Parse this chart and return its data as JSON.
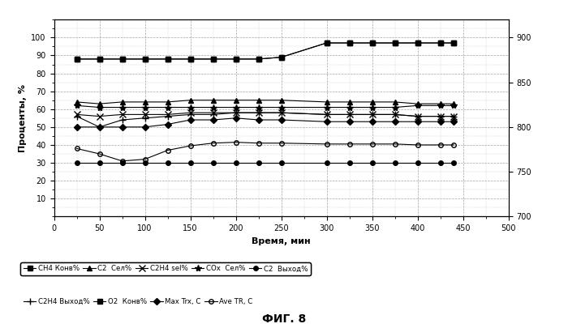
{
  "xlabel": "Время, мин",
  "ylabel": "Проценты, %",
  "fig_label": "ФИГ. 8",
  "xlim": [
    0,
    500
  ],
  "ylim_left": [
    0,
    110
  ],
  "ylim_right": [
    700,
    920
  ],
  "xticks": [
    0,
    50,
    100,
    150,
    200,
    250,
    300,
    350,
    400,
    450,
    500
  ],
  "yticks_left": [
    10,
    20,
    30,
    40,
    50,
    60,
    70,
    80,
    90,
    100
  ],
  "yticks_right": [
    700,
    750,
    800,
    850,
    900
  ],
  "series": {
    "CH4_conv": {
      "label": "CH4 Конв%",
      "marker": "s",
      "fillstyle": "full",
      "x": [
        25,
        50,
        75,
        100,
        125,
        150,
        175,
        200,
        225,
        250,
        300,
        325,
        350,
        375,
        400,
        425,
        440
      ],
      "y": [
        88,
        88,
        88,
        88,
        88,
        88,
        88,
        88,
        88,
        89,
        97,
        97,
        97,
        97,
        97,
        97,
        97
      ],
      "axis": "left"
    },
    "C2_sel": {
      "label": "C2  Сел%",
      "marker": "^",
      "fillstyle": "full",
      "x": [
        25,
        50,
        75,
        100,
        125,
        150,
        175,
        200,
        225,
        250,
        300,
        325,
        350,
        375,
        400,
        425,
        440
      ],
      "y": [
        64,
        63,
        64,
        64,
        64,
        65,
        65,
        65,
        65,
        65,
        64,
        64,
        64,
        64,
        63,
        63,
        63
      ],
      "axis": "left"
    },
    "C2H4_sel": {
      "label": "C2H4 sel%",
      "marker": "x",
      "fillstyle": "full",
      "x": [
        25,
        50,
        75,
        100,
        125,
        150,
        175,
        200,
        225,
        250,
        300,
        325,
        350,
        375,
        400,
        425,
        440
      ],
      "y": [
        57,
        56,
        57,
        57,
        57,
        58,
        58,
        58,
        58,
        58,
        57,
        57,
        57,
        57,
        56,
        56,
        56
      ],
      "axis": "left"
    },
    "COx_sel": {
      "label": "COx  Сел%",
      "marker": "*",
      "fillstyle": "full",
      "x": [
        25,
        50,
        75,
        100,
        125,
        150,
        175,
        200,
        225,
        250,
        300,
        325,
        350,
        375,
        400,
        425,
        440
      ],
      "y": [
        62,
        61,
        61,
        61,
        61,
        61,
        61,
        61,
        61,
        61,
        61,
        61,
        61,
        61,
        62,
        62,
        62
      ],
      "axis": "left"
    },
    "C2_yield": {
      "label": "C2  Выход%",
      "marker": "o",
      "fillstyle": "full",
      "x": [
        25,
        50,
        75,
        100,
        125,
        150,
        175,
        200,
        225,
        250,
        300,
        325,
        350,
        375,
        400,
        425,
        440
      ],
      "y": [
        30,
        30,
        30,
        30,
        30,
        30,
        30,
        30,
        30,
        30,
        30,
        30,
        30,
        30,
        30,
        30,
        30
      ],
      "axis": "left"
    },
    "C2H4_yield": {
      "label": "C2H4 Выход%",
      "marker": "+",
      "fillstyle": "full",
      "x": [
        25,
        50,
        75,
        100,
        125,
        150,
        175,
        200,
        225,
        250,
        300,
        325,
        350,
        375,
        400,
        425,
        440
      ],
      "y": [
        56,
        50,
        54,
        55,
        56,
        57,
        57,
        58,
        58,
        58,
        57,
        57,
        57,
        57,
        56,
        56,
        56
      ],
      "axis": "left"
    },
    "O2_conv": {
      "label": "O2  Конв%",
      "marker": "s",
      "fillstyle": "full",
      "x": [
        25,
        50,
        75,
        100,
        125,
        150,
        175,
        200,
        225,
        250,
        300,
        325,
        350,
        375,
        400,
        425,
        440
      ],
      "y": [
        88,
        88,
        88,
        88,
        88,
        88,
        88,
        88,
        88,
        89,
        97,
        97,
        97,
        97,
        97,
        97,
        97
      ],
      "axis": "left"
    },
    "Max_Trx": {
      "label": "Max Trx, C",
      "marker": "D",
      "fillstyle": "full",
      "x": [
        25,
        50,
        75,
        100,
        125,
        150,
        175,
        200,
        225,
        250,
        300,
        325,
        350,
        375,
        400,
        425,
        440
      ],
      "y": [
        800,
        800,
        800,
        800,
        803,
        808,
        808,
        810,
        808,
        808,
        806,
        806,
        806,
        806,
        806,
        806,
        806
      ],
      "axis": "right"
    },
    "Ave_TR": {
      "label": "Ave TR, C",
      "marker": "o",
      "fillstyle": "none",
      "x": [
        25,
        50,
        75,
        100,
        125,
        150,
        175,
        200,
        225,
        250,
        300,
        325,
        350,
        375,
        400,
        425,
        440
      ],
      "y": [
        776,
        770,
        762,
        764,
        774,
        779,
        782,
        783,
        782,
        782,
        781,
        781,
        781,
        781,
        780,
        780,
        780
      ],
      "axis": "right"
    }
  },
  "legend_row1": [
    {
      "label": "CH4 Конв%",
      "marker": "s",
      "fillstyle": "full"
    },
    {
      "label": "C2  Сел%",
      "marker": "^",
      "fillstyle": "full"
    },
    {
      "label": "C2H4 sel%",
      "marker": "x",
      "fillstyle": "full"
    },
    {
      "label": "COx  Сел%",
      "marker": "*",
      "fillstyle": "full"
    },
    {
      "label": "C2  Выход%",
      "marker": "o",
      "fillstyle": "full"
    }
  ],
  "legend_row2": [
    {
      "label": "C2H4 Выход%",
      "marker": "+",
      "fillstyle": "full"
    },
    {
      "label": "O2  Конв%",
      "marker": "s",
      "fillstyle": "full"
    },
    {
      "label": "Max Trx, C",
      "marker": "D",
      "fillstyle": "full"
    },
    {
      "label": "Ave TR, C",
      "marker": "o",
      "fillstyle": "none"
    }
  ],
  "bg_color": "#ffffff"
}
